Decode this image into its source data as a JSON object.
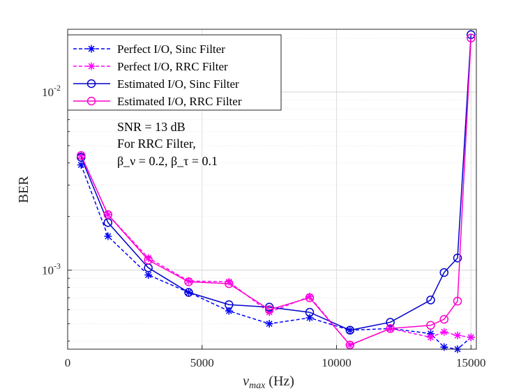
{
  "chart_data": {
    "type": "line",
    "title": "",
    "xlabel": "ν_max (Hz)",
    "xlabel_main": "ν",
    "xlabel_sub": "max",
    "xlabel_unit": " (Hz)",
    "ylabel": "BER",
    "xlim": [
      0,
      15200
    ],
    "ylim": [
      0.00036,
      0.0225
    ],
    "yscale": "log",
    "grid": true,
    "x_ticks": [
      0,
      5000,
      10000,
      15000
    ],
    "x_tick_labels": [
      "0",
      "5000",
      "10000",
      "15000"
    ],
    "y_ticks": [
      0.001,
      0.01
    ],
    "y_tick_labels": [
      {
        "base": "10",
        "exp": "-3"
      },
      {
        "base": "10",
        "exp": "-2"
      }
    ],
    "legend_position": "top-left",
    "series": [
      {
        "name": "Perfect I/O, Sinc Filter",
        "color": "#0000ff",
        "dash": true,
        "marker": "star",
        "x": [
          500,
          1500,
          3000,
          4500,
          6000,
          7500,
          9000,
          10500,
          12000,
          13500,
          14000,
          14500,
          15000
        ],
        "y": [
          0.0039,
          0.00155,
          0.00094,
          0.00075,
          0.00059,
          0.0005,
          0.00054,
          0.00046,
          0.00047,
          0.00044,
          0.00037,
          0.00036,
          0.00042
        ]
      },
      {
        "name": "Perfect I/O, RRC Filter",
        "color": "#ff00ff",
        "dash": true,
        "marker": "star",
        "x": [
          500,
          1500,
          3000,
          4500,
          6000,
          7500,
          9000,
          10500,
          12000,
          13500,
          14000,
          14500,
          15000
        ],
        "y": [
          0.0044,
          0.00205,
          0.00117,
          0.00087,
          0.00086,
          0.00058,
          0.00071,
          0.00038,
          0.00047,
          0.00042,
          0.00045,
          0.00043,
          0.00042
        ]
      },
      {
        "name": "Estimated I/O, Sinc Filter",
        "color": "#0000cc",
        "dash": false,
        "marker": "circle",
        "x": [
          500,
          1500,
          3000,
          4500,
          6000,
          7500,
          9000,
          10500,
          12000,
          13500,
          14000,
          14500,
          15000
        ],
        "y": [
          0.0043,
          0.00185,
          0.00103,
          0.00075,
          0.00064,
          0.00062,
          0.00058,
          0.00046,
          0.00051,
          0.00068,
          0.00097,
          0.00117,
          0.021
        ]
      },
      {
        "name": "Estimated I/O, RRC Filter",
        "color": "#ff00cc",
        "dash": false,
        "marker": "circle",
        "x": [
          500,
          1500,
          3000,
          4500,
          6000,
          7500,
          9000,
          10500,
          12000,
          13500,
          14000,
          14500,
          15000
        ],
        "y": [
          0.0044,
          0.00205,
          0.00114,
          0.00086,
          0.00084,
          0.0006,
          0.0007,
          0.00038,
          0.00047,
          0.00049,
          0.00053,
          0.00067,
          0.0201
        ]
      }
    ],
    "annotations": [
      "SNR = 13 dB",
      "For RRC Filter,",
      "β_ν = 0.2,  β_τ = 0.1"
    ]
  }
}
